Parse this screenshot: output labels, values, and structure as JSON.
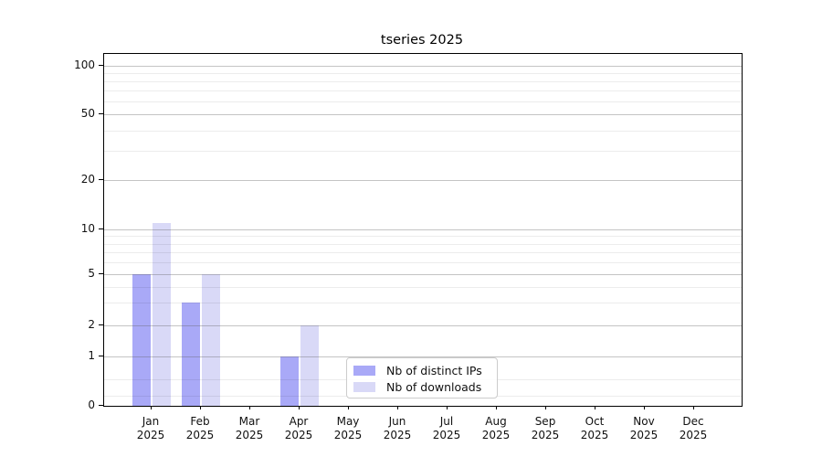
{
  "page": {
    "background": "#ffffff"
  },
  "chart_data": {
    "type": "bar",
    "title": "tseries 2025",
    "categories": [
      "Jan",
      "Feb",
      "Mar",
      "Apr",
      "May",
      "Jun",
      "Jul",
      "Aug",
      "Sep",
      "Oct",
      "Nov",
      "Dec"
    ],
    "category_year": "2025",
    "series": [
      {
        "name": "Nb of distinct IPs",
        "color": "#a9a9f7",
        "values": [
          5,
          3,
          0,
          1,
          0,
          0,
          0,
          0,
          0,
          0,
          0,
          0
        ]
      },
      {
        "name": "Nb of downloads",
        "color": "#d9d9f7",
        "values": [
          11,
          5,
          0,
          2,
          0,
          0,
          0,
          0,
          0,
          0,
          0,
          0
        ]
      }
    ],
    "y_ticks": [
      0,
      1,
      2,
      5,
      10,
      20,
      50,
      100
    ],
    "y_minor_ticks": [
      3,
      4,
      6,
      7,
      8,
      9,
      30,
      40,
      60,
      70,
      80,
      90
    ],
    "y_scale": "log-like with zero baseline",
    "ylim": [
      0,
      110
    ],
    "grid": {
      "horizontal": true,
      "major_color": "#bdbdbd",
      "minor_color": "#ececec"
    },
    "legend": {
      "position": "inside-bottom-center"
    },
    "axes": {
      "spine_color": "#000000",
      "tick_color": "#000000",
      "label_color": "#111111"
    }
  }
}
